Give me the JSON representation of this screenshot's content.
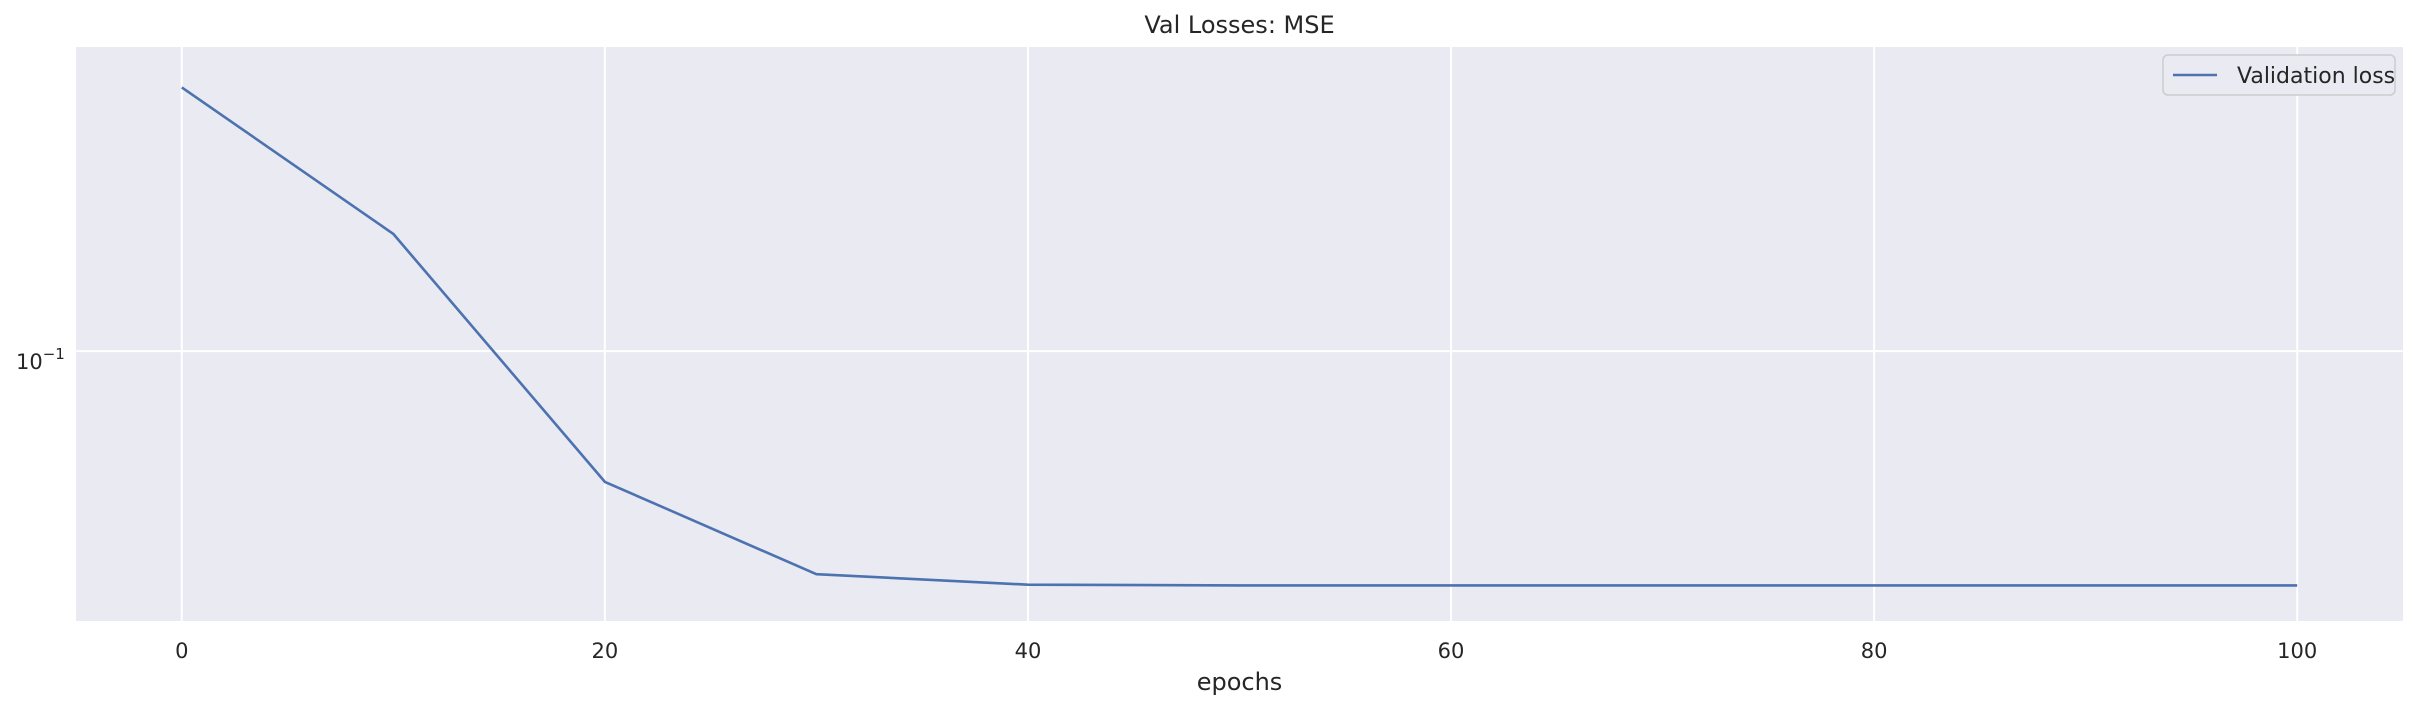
{
  "chart_data": {
    "type": "line",
    "title": "Val Losses:  MSE",
    "xlabel": "epochs",
    "ylabel": "",
    "yscale": "log",
    "xlim": [
      -5,
      105
    ],
    "ylim": [
      0.0325,
      0.355
    ],
    "grid": true,
    "legend_position": "top-right",
    "x": [
      0,
      10,
      20,
      30,
      40,
      50,
      60,
      70,
      80,
      90,
      100
    ],
    "series": [
      {
        "name": "Validation loss",
        "color": "#4c72b0",
        "values": [
          0.3,
          0.163,
          0.058,
          0.0395,
          0.0378,
          0.0377,
          0.0377,
          0.0377,
          0.0377,
          0.0377,
          0.0377
        ]
      }
    ],
    "x_ticks": [
      {
        "value": 0,
        "label": "0"
      },
      {
        "value": 20,
        "label": "20"
      },
      {
        "value": 40,
        "label": "40"
      },
      {
        "value": 60,
        "label": "60"
      },
      {
        "value": 80,
        "label": "80"
      },
      {
        "value": 100,
        "label": "100"
      }
    ],
    "y_ticks": [
      {
        "value": 0.1,
        "base": "10",
        "exponent": "−1"
      }
    ],
    "colors": {
      "plot_background": "#eaeaf2",
      "grid": "#ffffff",
      "text": "#262626"
    }
  }
}
